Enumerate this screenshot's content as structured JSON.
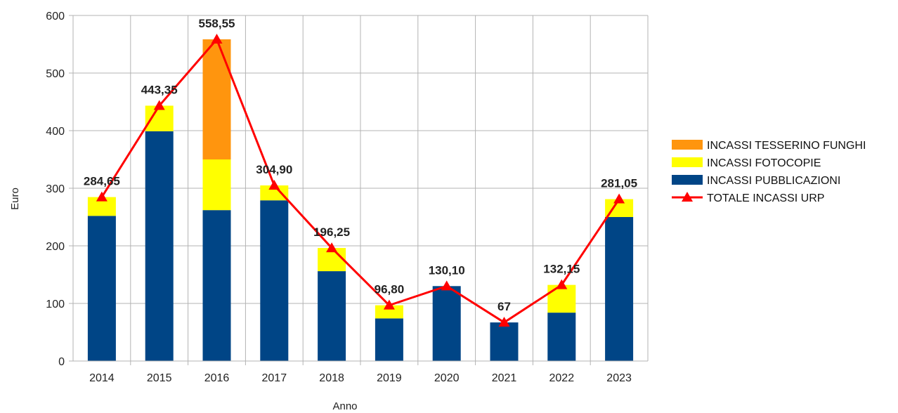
{
  "chart_data": {
    "type": "bar",
    "stacked": true,
    "categories": [
      "2014",
      "2015",
      "2016",
      "2017",
      "2018",
      "2019",
      "2020",
      "2021",
      "2022",
      "2023"
    ],
    "series": [
      {
        "name": "INCASSI PUBBLICAZIONI",
        "type": "bar",
        "color": "#004586",
        "values": [
          252,
          399,
          262,
          279,
          156,
          74,
          130.1,
          67,
          84,
          250
        ]
      },
      {
        "name": "INCASSI FOTOCOPIE",
        "type": "bar",
        "color": "#ffff00",
        "values": [
          32.65,
          44.35,
          88,
          25.9,
          40.25,
          22.8,
          0,
          0,
          48.15,
          31.05
        ]
      },
      {
        "name": "INCASSI TESSERINO FUNGHI",
        "type": "bar",
        "color": "#ff950e",
        "values": [
          0,
          0,
          208.55,
          0,
          0,
          0,
          0,
          0,
          0,
          0
        ]
      },
      {
        "name": "TOTALE INCASSI URP",
        "type": "line",
        "color": "#ff0000",
        "values": [
          284.65,
          443.35,
          558.55,
          304.9,
          196.25,
          96.8,
          130.1,
          67,
          132.15,
          281.05
        ]
      }
    ],
    "data_labels": [
      "284,65",
      "443,35",
      "558,55",
      "304,90",
      "196,25",
      "96,80",
      "130,10",
      "67",
      "132,15",
      "281,05"
    ],
    "xlabel": "Anno",
    "ylabel": "Euro",
    "ylim": [
      0,
      600
    ],
    "yticks": [
      "0",
      "100",
      "200",
      "300",
      "400",
      "500",
      "600"
    ],
    "grid": true,
    "legend_position": "right",
    "legend_order": [
      "INCASSI TESSERINO FUNGHI",
      "INCASSI FOTOCOPIE",
      "INCASSI PUBBLICAZIONI",
      "TOTALE INCASSI URP"
    ]
  }
}
